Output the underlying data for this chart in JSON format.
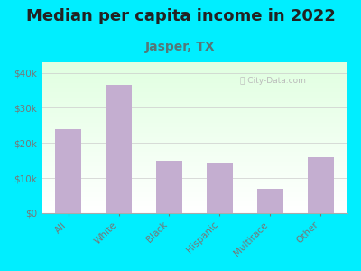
{
  "title": "Median per capita income in 2022",
  "subtitle": "Jasper, TX",
  "categories": [
    "All",
    "White",
    "Black",
    "Hispanic",
    "Multirace",
    "Other"
  ],
  "values": [
    24000,
    36500,
    15000,
    14500,
    7000,
    16000
  ],
  "bar_color": "#c4aed0",
  "title_fontsize": 13,
  "subtitle_fontsize": 10,
  "subtitle_color": "#557777",
  "title_color": "#222222",
  "background_color": "#00eeff",
  "yticks": [
    0,
    10000,
    20000,
    30000,
    40000
  ],
  "ytick_labels": [
    "$0",
    "$10k",
    "$20k",
    "$30k",
    "$40k"
  ],
  "ylim": [
    0,
    43000
  ],
  "tick_color": "#777777",
  "watermark_text": "Ⓢ City-Data.com",
  "watermark_color": "#bbbbbb"
}
